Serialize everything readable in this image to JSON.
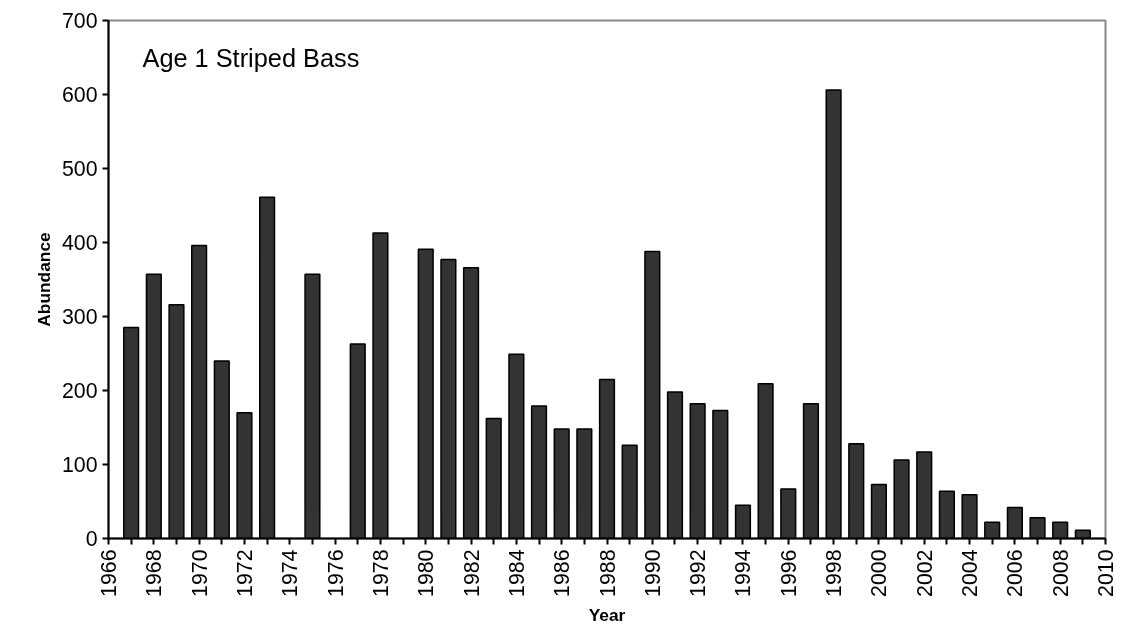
{
  "chart_data": {
    "type": "bar",
    "title": "Age 1 Striped Bass",
    "xlabel": "Year",
    "ylabel": "Abundance",
    "x": [
      1967,
      1968,
      1969,
      1970,
      1971,
      1972,
      1973,
      1974,
      1975,
      1976,
      1977,
      1978,
      1979,
      1980,
      1981,
      1982,
      1983,
      1984,
      1985,
      1986,
      1987,
      1988,
      1989,
      1990,
      1991,
      1992,
      1993,
      1994,
      1995,
      1996,
      1997,
      1998,
      1999,
      2000,
      2001,
      2002,
      2003,
      2004,
      2005,
      2006,
      2007,
      2008,
      2009
    ],
    "values": [
      285,
      357,
      316,
      396,
      240,
      170,
      461,
      null,
      357,
      null,
      263,
      413,
      null,
      391,
      377,
      366,
      162,
      249,
      179,
      148,
      148,
      215,
      126,
      388,
      198,
      182,
      173,
      45,
      209,
      67,
      182,
      606,
      128,
      73,
      106,
      117,
      64,
      59,
      22,
      42,
      28,
      22,
      11
    ],
    "color": "#333333",
    "xlim": [
      1966,
      2010
    ],
    "xticks": [
      1966,
      {
        "value": 1967,
        "label": null
      },
      1968,
      {
        "value": 1969,
        "label": null
      },
      1970,
      {
        "value": 1971,
        "label": null
      },
      1972,
      {
        "value": 1973,
        "label": null
      },
      1974,
      {
        "value": 1975,
        "label": null
      },
      1976,
      {
        "value": 1977,
        "label": null
      },
      1978,
      {
        "value": 1979,
        "label": null
      },
      1980,
      {
        "value": 1981,
        "label": null
      },
      1982,
      {
        "value": 1983,
        "label": null
      },
      1984,
      {
        "value": 1985,
        "label": null
      },
      1986,
      {
        "value": 1987,
        "label": null
      },
      1988,
      {
        "value": 1989,
        "label": null
      },
      1990,
      {
        "value": 1991,
        "label": null
      },
      1992,
      {
        "value": 1993,
        "label": null
      },
      1994,
      {
        "value": 1995,
        "label": null
      },
      1996,
      {
        "value": 1997,
        "label": null
      },
      1998,
      {
        "value": 1999,
        "label": null
      },
      2000,
      {
        "value": 2001,
        "label": null
      },
      2002,
      {
        "value": 2003,
        "label": null
      },
      2004,
      {
        "value": 2005,
        "label": null
      },
      2006,
      {
        "value": 2007,
        "label": null
      },
      2008,
      {
        "value": 2009,
        "label": null
      },
      2010
    ],
    "ylim": [
      0,
      700
    ],
    "yticks": [
      0,
      100,
      200,
      300,
      400,
      500,
      600,
      700
    ],
    "grid": false
  }
}
